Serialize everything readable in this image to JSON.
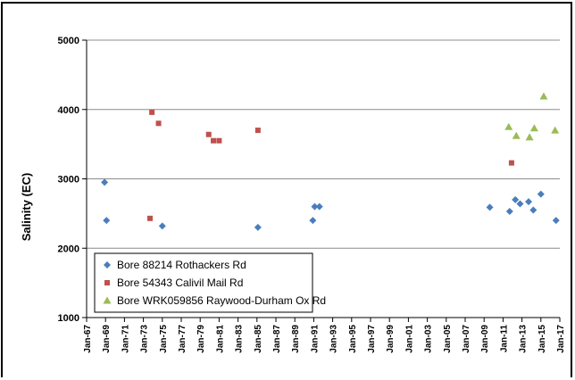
{
  "chart_data": {
    "type": "scatter",
    "title": "",
    "xlabel": "",
    "ylabel": "Salinity (EC)",
    "ylim": [
      1000,
      5000
    ],
    "yticks": [
      "1000",
      "2000",
      "3000",
      "4000",
      "5000"
    ],
    "xlim": [
      1967,
      2017
    ],
    "xticks": [
      "Jan-67",
      "Jan-69",
      "Jan-71",
      "Jan-73",
      "Jan-75",
      "Jan-77",
      "Jan-79",
      "Jan-81",
      "Jan-83",
      "Jan-85",
      "Jan-87",
      "Jan-89",
      "Jan-91",
      "Jan-93",
      "Jan-95",
      "Jan-97",
      "Jan-99",
      "Jan-01",
      "Jan-03",
      "Jan-05",
      "Jan-07",
      "Jan-09",
      "Jan-11",
      "Jan-13",
      "Jan-15",
      "Jan-17"
    ],
    "grid": "horizontal",
    "legend_position": "bottom-left",
    "series": [
      {
        "name": "Bore 88214 Rothackers Rd",
        "marker": "diamond",
        "color": "#4a7ebb",
        "points": [
          [
            1968.9,
            2950
          ],
          [
            1969.1,
            2400
          ],
          [
            1975.0,
            2320
          ],
          [
            1985.1,
            2300
          ],
          [
            1990.9,
            2400
          ],
          [
            1991.1,
            2600
          ],
          [
            1991.6,
            2600
          ],
          [
            2009.6,
            2590
          ],
          [
            2011.7,
            2530
          ],
          [
            2012.3,
            2700
          ],
          [
            2012.8,
            2640
          ],
          [
            2013.7,
            2670
          ],
          [
            2014.2,
            2550
          ],
          [
            2015.0,
            2780
          ],
          [
            2016.6,
            2400
          ]
        ]
      },
      {
        "name": "Bore 54343 Calivil Mail Rd",
        "marker": "square",
        "color": "#c0504d",
        "points": [
          [
            1973.9,
            3960
          ],
          [
            1974.6,
            3800
          ],
          [
            1973.7,
            2430
          ],
          [
            1979.9,
            3640
          ],
          [
            1980.4,
            3550
          ],
          [
            1981.0,
            3550
          ],
          [
            1985.1,
            3700
          ],
          [
            2011.9,
            3230
          ]
        ]
      },
      {
        "name": "Bore WRK059856 Raywood-Durham Ox Rd",
        "marker": "triangle",
        "color": "#9bbb59",
        "points": [
          [
            2011.6,
            3750
          ],
          [
            2012.4,
            3620
          ],
          [
            2013.8,
            3600
          ],
          [
            2014.3,
            3730
          ],
          [
            2015.3,
            4190
          ],
          [
            2016.5,
            3700
          ]
        ]
      }
    ]
  }
}
